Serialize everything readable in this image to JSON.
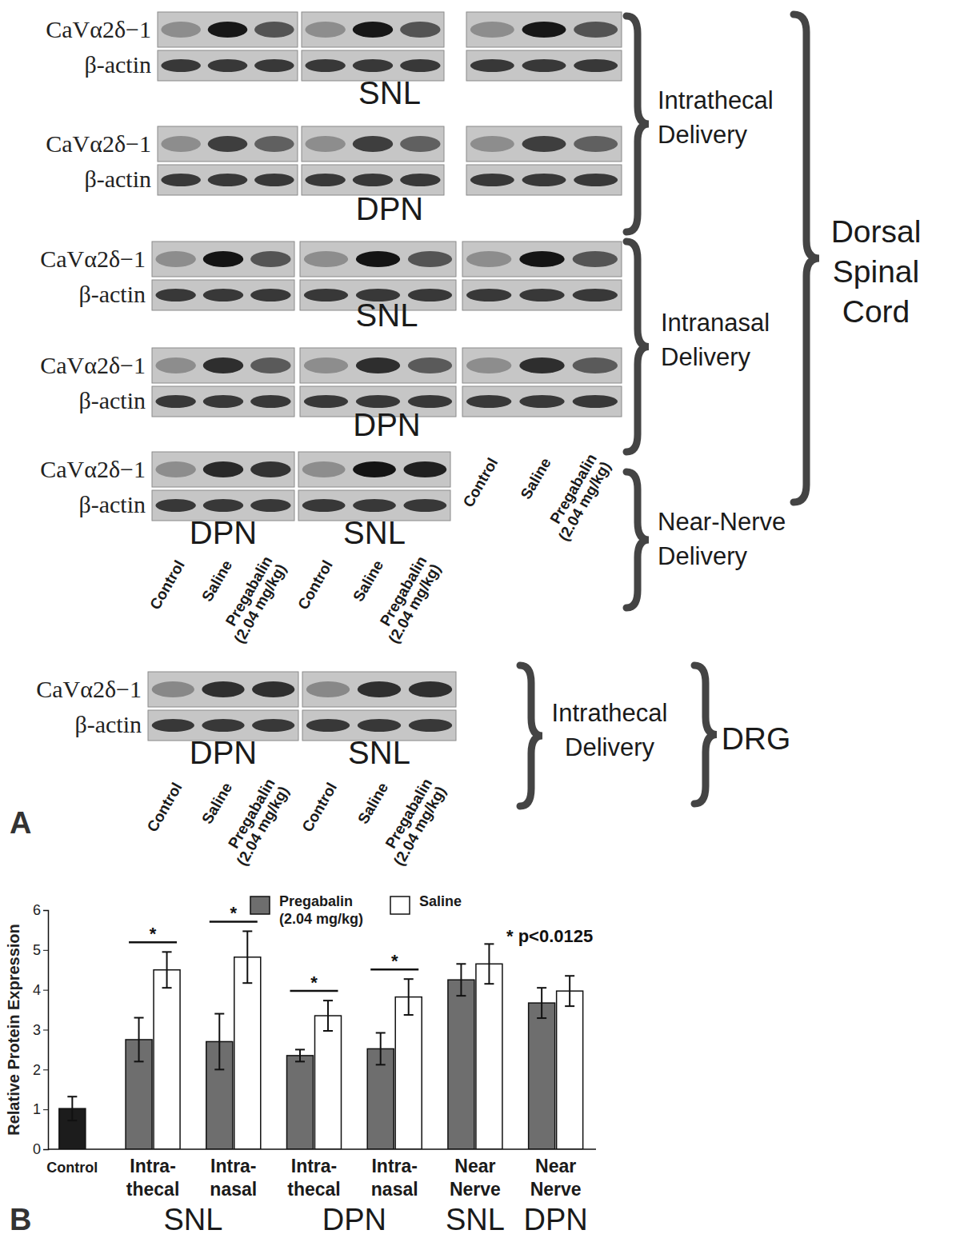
{
  "panel_a": {
    "label": "A",
    "protein": "CaVα2δ−1",
    "loading": "β-actin",
    "lanes": [
      [
        "Control"
      ],
      [
        "Saline"
      ],
      [
        "Pregabalin",
        "(2.04 mg/kg)"
      ]
    ],
    "routes": [
      [
        "Intrathecal",
        "Delivery"
      ],
      [
        "Intranasal",
        "Delivery"
      ],
      [
        "Near-Nerve",
        "Delivery"
      ]
    ],
    "tissues": [
      [
        "Dorsal",
        "Spinal",
        "Cord"
      ],
      [
        "DRG"
      ]
    ],
    "rows": [
      [
        "SNL"
      ],
      [
        "DPN"
      ],
      [
        "SNL"
      ],
      [
        "DPN"
      ],
      [
        "DPN",
        "SNL"
      ],
      [
        "DPN",
        "SNL"
      ]
    ]
  },
  "chart_data": {
    "type": "bar",
    "panel_label": "B",
    "y_label": "Relative Protein Expression",
    "categories": [
      "Control",
      "Intra-\nthecal",
      "Intra-\nnasal",
      "Intra-\nthecal",
      "Intra-\nnasal",
      "Near\nNerve",
      "Near\nNerve"
    ],
    "group_labels": [
      null,
      "SNL",
      "SNL",
      "DPN",
      "DPN",
      "SNL",
      "DPN"
    ],
    "control": {
      "value": 1.02,
      "error": 0.3,
      "color": "#1c1c1c"
    },
    "series": [
      {
        "name": "Pregabalin\n(2.04 mg/kg)",
        "color": "#6e6e6e",
        "values": [
          null,
          2.75,
          2.7,
          2.35,
          2.52,
          4.25,
          3.67
        ],
        "errors": [
          null,
          0.55,
          0.7,
          0.15,
          0.4,
          0.4,
          0.38
        ]
      },
      {
        "name": "Saline",
        "color": "#ffffff",
        "values": [
          null,
          4.5,
          4.82,
          3.35,
          3.82,
          4.65,
          3.97
        ],
        "errors": [
          null,
          0.45,
          0.65,
          0.38,
          0.45,
          0.5,
          0.38
        ]
      }
    ],
    "significance": [
      null,
      "*",
      "*",
      "*",
      "*",
      null,
      null
    ],
    "annotation": "* p<0.0125",
    "ylim": [
      0,
      6
    ],
    "yticks": [
      0,
      1,
      2,
      3,
      4,
      5,
      6
    ],
    "legend": "top",
    "grid": false
  }
}
